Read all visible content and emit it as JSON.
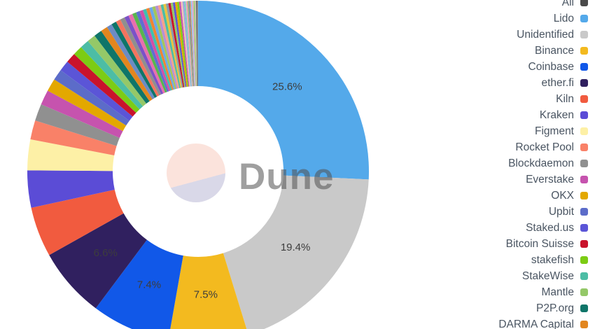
{
  "watermark": {
    "text": "Dune"
  },
  "legend": {
    "items": [
      {
        "label": "All",
        "color": "#4a4a4a"
      },
      {
        "label": "Lido",
        "color": "#54a9ea"
      },
      {
        "label": "Unidentified",
        "color": "#c9c9c9"
      },
      {
        "label": "Binance",
        "color": "#f3ba1f"
      },
      {
        "label": "Coinbase",
        "color": "#1158e8"
      },
      {
        "label": "ether.fi",
        "color": "#30205f"
      },
      {
        "label": "Kiln",
        "color": "#f15b3f"
      },
      {
        "label": "Kraken",
        "color": "#5b4cd6"
      },
      {
        "label": "Figment",
        "color": "#fdf0a6"
      },
      {
        "label": "Rocket Pool",
        "color": "#f98168"
      },
      {
        "label": "Blockdaemon",
        "color": "#909090"
      },
      {
        "label": "Everstake",
        "color": "#c653ae"
      },
      {
        "label": "OKX",
        "color": "#e3a800"
      },
      {
        "label": "Upbit",
        "color": "#5c6cc9"
      },
      {
        "label": "Staked.us",
        "color": "#5b55d7"
      },
      {
        "label": "Bitcoin Suisse",
        "color": "#c9132c"
      },
      {
        "label": "stakefish",
        "color": "#7ccc14"
      },
      {
        "label": "StakeWise",
        "color": "#4cbda5"
      },
      {
        "label": "Mantle",
        "color": "#94c868"
      },
      {
        "label": "P2P.org",
        "color": "#0f7569"
      },
      {
        "label": "DARMA Capital",
        "color": "#e2861f"
      }
    ]
  },
  "chart_data": {
    "type": "pie",
    "donut": true,
    "legend_position": "right",
    "start_angle_deg": 0,
    "direction": "clockwise",
    "center": [
      283,
      245
    ],
    "outer_radius": 244,
    "inner_radius": 122,
    "label_radius": 176,
    "slices": [
      {
        "name": "Lido",
        "value": 25.6,
        "pct_label": "25.6%",
        "color": "#54a9ea"
      },
      {
        "name": "Unidentified",
        "value": 19.4,
        "pct_label": "19.4%",
        "color": "#c9c9c9"
      },
      {
        "name": "Binance",
        "value": 7.5,
        "pct_label": "7.5%",
        "color": "#f3ba1f"
      },
      {
        "name": "Coinbase",
        "value": 7.4,
        "pct_label": "7.4%",
        "color": "#1158e8"
      },
      {
        "name": "ether.fi",
        "value": 6.6,
        "pct_label": "6.6%",
        "color": "#30205f"
      },
      {
        "name": "Kiln",
        "value": 4.7,
        "color": "#f15b3f"
      },
      {
        "name": "Kraken",
        "value": 3.5,
        "color": "#5b4cd6"
      },
      {
        "name": "Figment",
        "value": 2.9,
        "color": "#fdf0a6"
      },
      {
        "name": "Rocket Pool",
        "value": 1.8,
        "color": "#f98168"
      },
      {
        "name": "Blockdaemon",
        "value": 1.6,
        "color": "#909090"
      },
      {
        "name": "Everstake",
        "value": 1.4,
        "color": "#c653ae"
      },
      {
        "name": "OKX",
        "value": 1.2,
        "color": "#e3a800"
      },
      {
        "name": "Upbit",
        "value": 1.05,
        "color": "#5c6cc9"
      },
      {
        "name": "Staked.us",
        "value": 1.0,
        "color": "#5b55d7"
      },
      {
        "name": "Bitcoin Suisse",
        "value": 0.95,
        "color": "#c9132c"
      },
      {
        "name": "stakefish",
        "value": 0.9,
        "color": "#7ccc14"
      },
      {
        "name": "StakeWise",
        "value": 0.85,
        "color": "#4cbda5"
      },
      {
        "name": "Mantle",
        "value": 0.8,
        "color": "#94c868"
      },
      {
        "name": "P2P.org",
        "value": 0.75,
        "color": "#0f7569"
      },
      {
        "name": "DARMA Capital",
        "value": 0.65,
        "color": "#e2861f"
      }
    ],
    "unlabeled_tail": {
      "values": [
        0.5,
        0.47,
        0.45,
        0.43,
        0.41,
        0.39,
        0.37,
        0.35,
        0.33,
        0.31,
        0.3,
        0.29,
        0.28,
        0.27,
        0.26,
        0.25,
        0.24,
        0.23,
        0.22,
        0.21,
        0.2,
        0.19,
        0.18,
        0.17,
        0.16,
        0.15,
        0.14,
        0.13,
        0.12,
        0.11,
        0.1,
        0.1,
        0.09,
        0.09,
        0.08,
        0.08,
        0.07,
        0.07,
        0.06,
        0.06
      ],
      "colors": [
        "#6c8bc4",
        "#0f7569",
        "#f4745e",
        "#8f8f8f",
        "#7b52c7",
        "#e86fae",
        "#58b54e",
        "#5f6fd0",
        "#d44fa6",
        "#3fc0b0",
        "#ef8432",
        "#6aa9e8",
        "#a4c65a",
        "#b58fd6",
        "#f9a188",
        "#4cbda5",
        "#e8c33f",
        "#8a99a8",
        "#c9132c",
        "#94c868",
        "#5b55d7",
        "#e3a800",
        "#7ccc14",
        "#c653ae",
        "#f5c4b5",
        "#9aa7e0",
        "#76d0c2",
        "#f0a0c8",
        "#b0b86a",
        "#708ab8",
        "#d98a4a",
        "#8cd0f0",
        "#caa0e8",
        "#f2b5a0",
        "#64c48a",
        "#e0d070",
        "#a8b2bc",
        "#6a6f74",
        "#4a4a4a",
        "#9c9c9c"
      ]
    }
  },
  "style": {
    "background": "#ffffff",
    "legend_text_color": "#4a5562",
    "percent_label_color": "#3d3d3d",
    "watermark_text_color": "rgba(80,80,80,0.55)",
    "watermark_circle_top": "#fbe3dc",
    "watermark_circle_bottom": "#d9d8e8"
  }
}
